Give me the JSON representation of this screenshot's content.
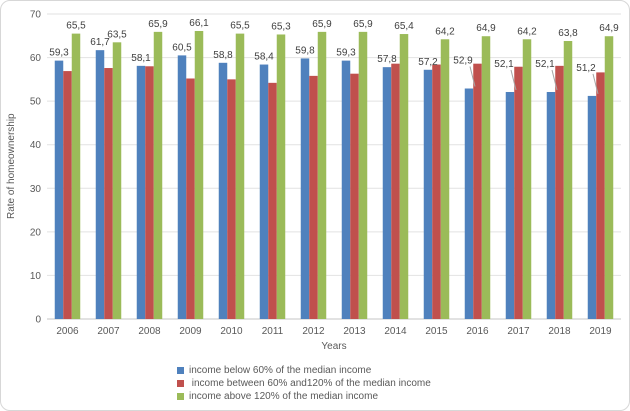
{
  "chart_data": {
    "type": "bar",
    "title": "",
    "xlabel": "Years",
    "ylabel": "Rate of homeownership",
    "ylim": [
      0,
      70
    ],
    "yticks": [
      0,
      10,
      20,
      30,
      40,
      50,
      60,
      70
    ],
    "grid": true,
    "legend_position": "bottom-left",
    "decimal_separator": ",",
    "categories": [
      "2006",
      "2007",
      "2008",
      "2009",
      "2010",
      "2011",
      "2012",
      "2013",
      "2014",
      "2015",
      "2016",
      "2017",
      "2018",
      "2019"
    ],
    "series": [
      {
        "key": "below-60",
        "name": "income below 60% of the median income",
        "color": "#4F81BD",
        "data_labels": true,
        "callout_years": [
          "2016",
          "2017",
          "2018",
          "2019"
        ],
        "values": [
          59.3,
          61.7,
          58.1,
          60.5,
          58.8,
          58.4,
          59.8,
          59.3,
          57.8,
          57.2,
          52.9,
          52.1,
          52.1,
          51.2
        ]
      },
      {
        "key": "60-120",
        "name": " income between 60% and120% of the median income",
        "color": "#C0504D",
        "data_labels": false,
        "values": [
          56.9,
          57.6,
          58.0,
          55.2,
          55.0,
          54.2,
          55.8,
          56.3,
          58.6,
          58.4,
          58.6,
          57.9,
          58.1,
          56.6
        ]
      },
      {
        "key": "above-120",
        "name": "income above 120% of the median income",
        "color": "#9BBB59",
        "data_labels": true,
        "values": [
          65.5,
          63.5,
          65.9,
          66.1,
          65.5,
          65.3,
          65.9,
          65.9,
          65.4,
          64.2,
          64.9,
          64.2,
          63.8,
          64.9
        ]
      }
    ]
  },
  "style": {
    "background": "#FFFFFF",
    "frame_border_color": "#D7D7D7",
    "grid_color": "#E2E2E2",
    "axis_line_color": "#C6C6C6",
    "tick_text_color": "#595959",
    "data_label_color": "#404040",
    "leader_line_color": "#A6A6A6"
  }
}
